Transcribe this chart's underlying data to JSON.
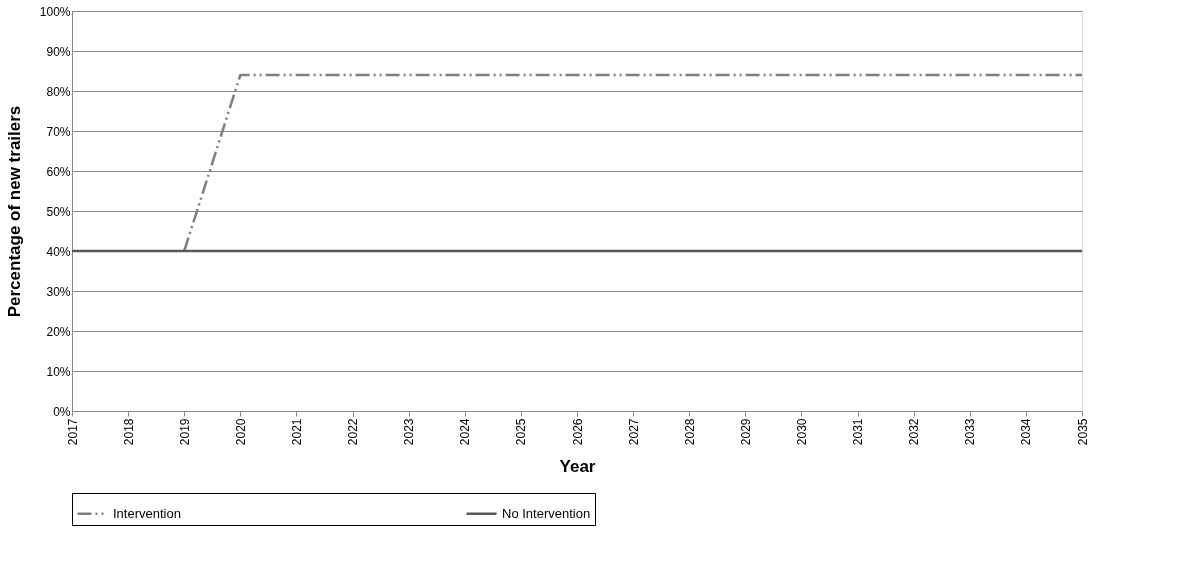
{
  "chart_data": {
    "type": "line",
    "xlabel": "Year",
    "ylabel": "Percentage of new trailers",
    "x": [
      2017,
      2018,
      2019,
      2020,
      2021,
      2022,
      2023,
      2024,
      2025,
      2026,
      2027,
      2028,
      2029,
      2030,
      2031,
      2032,
      2033,
      2034,
      2035
    ],
    "series": [
      {
        "name": "Intervention",
        "color": "#808080",
        "line_style": "dashed",
        "values": [
          null,
          null,
          40,
          84,
          84,
          84,
          84,
          84,
          84,
          84,
          84,
          84,
          84,
          84,
          84,
          84,
          84,
          84,
          84
        ]
      },
      {
        "name": "No Intervention",
        "color": "#595959",
        "line_style": "solid",
        "values": [
          40,
          40,
          40,
          40,
          40,
          40,
          40,
          40,
          40,
          40,
          40,
          40,
          40,
          40,
          40,
          40,
          40,
          40,
          40
        ]
      }
    ],
    "xlim": [
      2017,
      2035
    ],
    "xticks": [
      2017,
      2018,
      2019,
      2020,
      2021,
      2022,
      2023,
      2024,
      2025,
      2026,
      2027,
      2028,
      2029,
      2030,
      2031,
      2032,
      2033,
      2034,
      2035
    ],
    "ylim": [
      0,
      100
    ],
    "yticks": [
      {
        "value": 0,
        "label": "0%"
      },
      {
        "value": 10,
        "label": "10%"
      },
      {
        "value": 20,
        "label": "20%"
      },
      {
        "value": 30,
        "label": "30%"
      },
      {
        "value": 40,
        "label": "40%"
      },
      {
        "value": 50,
        "label": "50%"
      },
      {
        "value": 60,
        "label": "60%"
      },
      {
        "value": 70,
        "label": "70%"
      },
      {
        "value": 80,
        "label": "80%"
      },
      {
        "value": 90,
        "label": "90%"
      },
      {
        "value": 100,
        "label": "100%"
      }
    ],
    "grid": "y",
    "legend": "bottom",
    "marker": "none"
  }
}
